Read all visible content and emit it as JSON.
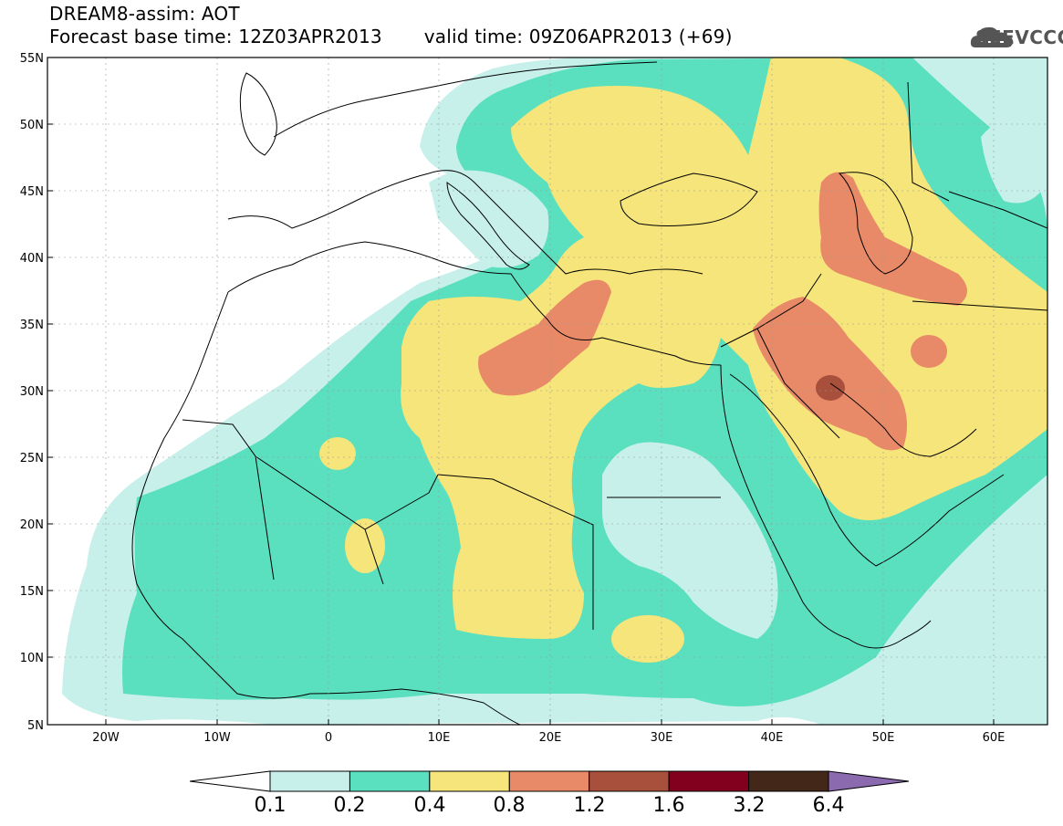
{
  "title": {
    "line1": "DREAM8-assim: AOT",
    "line2_left": "Forecast base time: 12Z03APR2013",
    "line2_right": "valid time: 09Z06APR2013 (+69)"
  },
  "logo": {
    "text": "SEEVCCC",
    "icon": "cloud-icon"
  },
  "axes": {
    "lat_labels": [
      "55N",
      "50N",
      "45N",
      "40N",
      "35N",
      "30N",
      "25N",
      "20N",
      "15N",
      "10N",
      "5N"
    ],
    "lon_labels": [
      "20W",
      "10W",
      "0",
      "10E",
      "20E",
      "30E",
      "40E",
      "50E",
      "60E"
    ]
  },
  "colorbar": {
    "colors": [
      "#ffffff",
      "#c8f0ea",
      "#5be0bf",
      "#f5e57a",
      "#e88a68",
      "#a8503c",
      "#82001e",
      "#43281a",
      "#8c6ab0"
    ],
    "labels": [
      "0.1",
      "0.2",
      "0.4",
      "0.8",
      "1.2",
      "1.6",
      "3.2",
      "6.4"
    ]
  }
}
